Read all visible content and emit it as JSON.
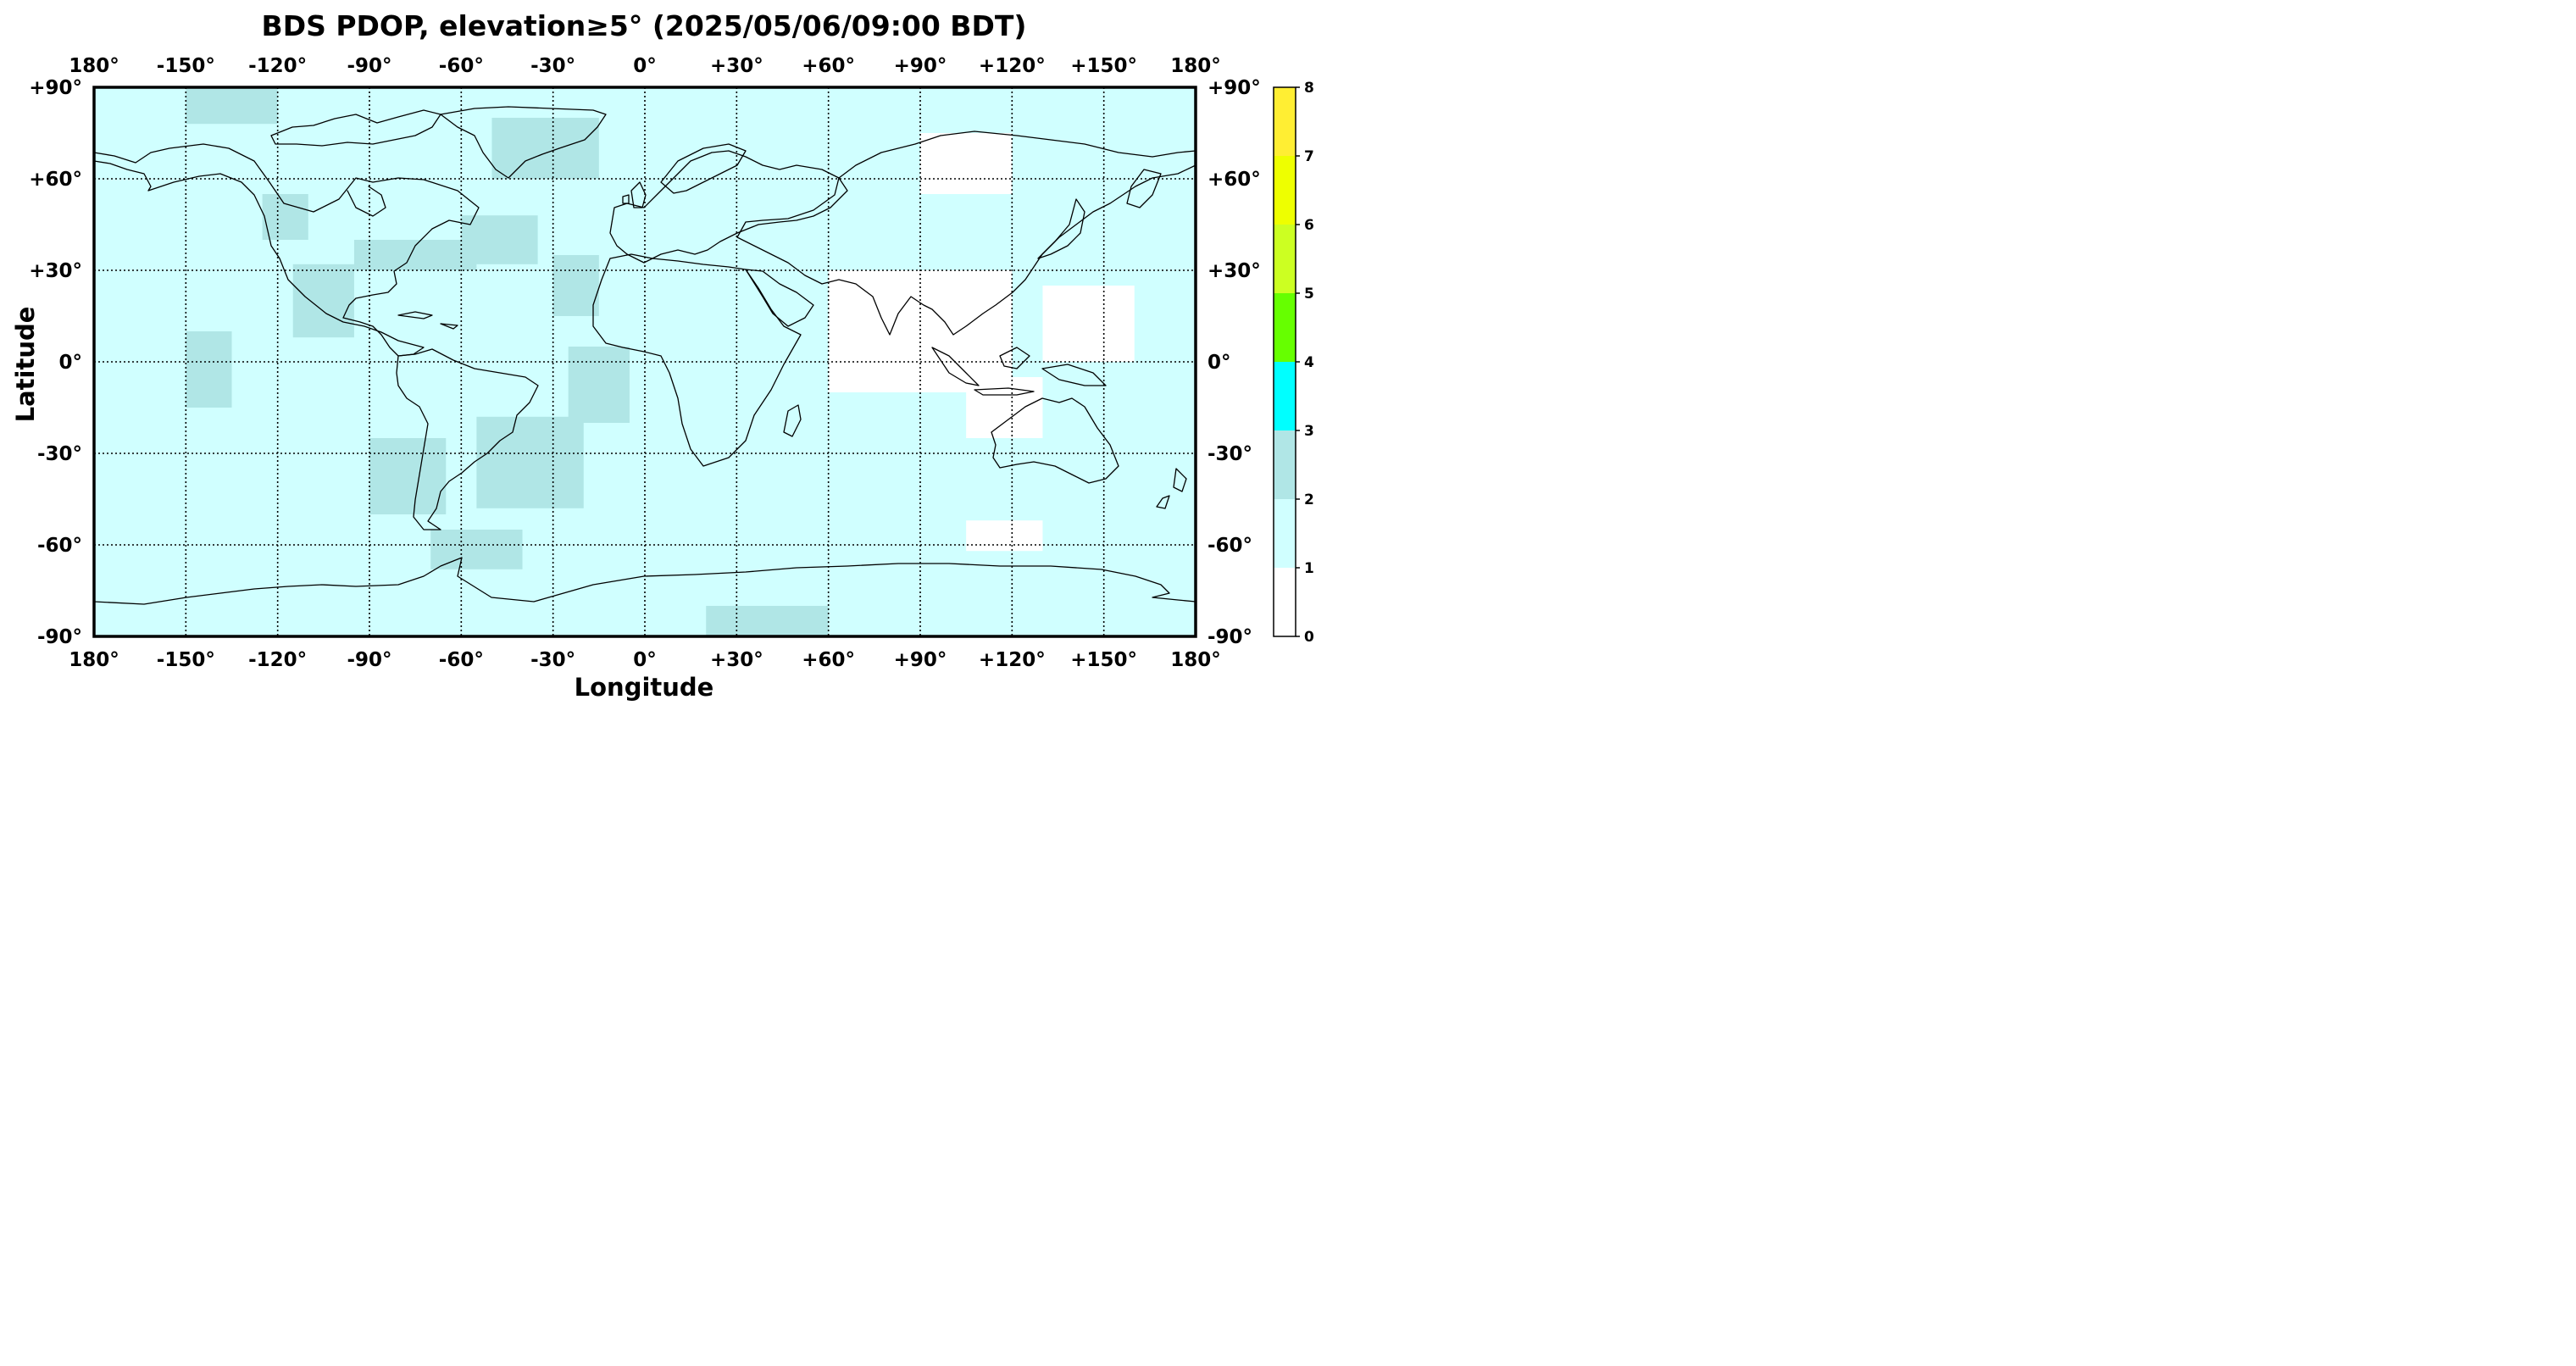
{
  "chart_data": {
    "type": "heatmap",
    "title": "BDS PDOP, elevation≥5° (2025/05/06/09:00 BDT)",
    "xlabel": "Longitude",
    "ylabel": "Latitude",
    "xlim": [
      -180,
      180
    ],
    "ylim": [
      -90,
      90
    ],
    "grid": true,
    "x_ticks": [
      -180,
      -150,
      -120,
      -90,
      -60,
      -30,
      0,
      30,
      60,
      90,
      120,
      150,
      180
    ],
    "x_tick_labels": [
      "180°",
      "-150°",
      "-120°",
      "-90°",
      "-60°",
      "-30°",
      "0°",
      "+30°",
      "+60°",
      "+90°",
      "+120°",
      "+150°",
      "180°"
    ],
    "y_ticks": [
      90,
      60,
      30,
      0,
      -30,
      -60,
      -90
    ],
    "y_tick_labels": [
      "+90°",
      "+60°",
      "+30°",
      "0°",
      "-30°",
      "-60°",
      "-90°"
    ],
    "colorbar": {
      "ticks": [
        "0",
        "1",
        "2",
        "3",
        "4",
        "5",
        "6",
        "7",
        "8"
      ],
      "bins": [
        {
          "min": 0,
          "max": 1,
          "color": "#ffffff"
        },
        {
          "min": 1,
          "max": 2,
          "color": "#d0ffff"
        },
        {
          "min": 2,
          "max": 3,
          "color": "#b0e6e6"
        },
        {
          "min": 3,
          "max": 4,
          "color": "#00ffff"
        },
        {
          "min": 4,
          "max": 5,
          "color": "#66ff00"
        },
        {
          "min": 5,
          "max": 6,
          "color": "#ccff22"
        },
        {
          "min": 6,
          "max": 7,
          "color": "#eeff00"
        },
        {
          "min": 7,
          "max": 8,
          "color": "#ffee33"
        }
      ]
    },
    "background_pdop_bin": "1-2",
    "regions": [
      {
        "pdop_bin": "2-3",
        "lon": [
          -150,
          -120
        ],
        "lat": [
          78,
          90
        ]
      },
      {
        "pdop_bin": "2-3",
        "lon": [
          -125,
          -110
        ],
        "lat": [
          40,
          55
        ]
      },
      {
        "pdop_bin": "2-3",
        "lon": [
          -150,
          -135
        ],
        "lat": [
          -15,
          10
        ]
      },
      {
        "pdop_bin": "2-3",
        "lon": [
          -115,
          -95
        ],
        "lat": [
          8,
          32
        ]
      },
      {
        "pdop_bin": "2-3",
        "lon": [
          -95,
          -55
        ],
        "lat": [
          30,
          40
        ]
      },
      {
        "pdop_bin": "2-3",
        "lon": [
          -60,
          -35
        ],
        "lat": [
          32,
          48
        ]
      },
      {
        "pdop_bin": "2-3",
        "lon": [
          -50,
          -15
        ],
        "lat": [
          60,
          80
        ]
      },
      {
        "pdop_bin": "2-3",
        "lon": [
          -30,
          -15
        ],
        "lat": [
          15,
          35
        ]
      },
      {
        "pdop_bin": "2-3",
        "lon": [
          -25,
          -5
        ],
        "lat": [
          -20,
          5
        ]
      },
      {
        "pdop_bin": "2-3",
        "lon": [
          -90,
          -65
        ],
        "lat": [
          -50,
          -25
        ]
      },
      {
        "pdop_bin": "2-3",
        "lon": [
          -55,
          -20
        ],
        "lat": [
          -48,
          -18
        ]
      },
      {
        "pdop_bin": "2-3",
        "lon": [
          -70,
          -40
        ],
        "lat": [
          -68,
          -55
        ]
      },
      {
        "pdop_bin": "2-3",
        "lon": [
          20,
          60
        ],
        "lat": [
          -90,
          -80
        ]
      },
      {
        "pdop_bin": "0-1",
        "lon": [
          90,
          120
        ],
        "lat": [
          55,
          75
        ]
      },
      {
        "pdop_bin": "0-1",
        "lon": [
          60,
          120
        ],
        "lat": [
          -10,
          30
        ]
      },
      {
        "pdop_bin": "0-1",
        "lon": [
          105,
          130
        ],
        "lat": [
          -25,
          -5
        ]
      },
      {
        "pdop_bin": "0-1",
        "lon": [
          130,
          160
        ],
        "lat": [
          0,
          25
        ]
      },
      {
        "pdop_bin": "0-1",
        "lon": [
          105,
          130
        ],
        "lat": [
          -62,
          -52
        ]
      }
    ]
  }
}
